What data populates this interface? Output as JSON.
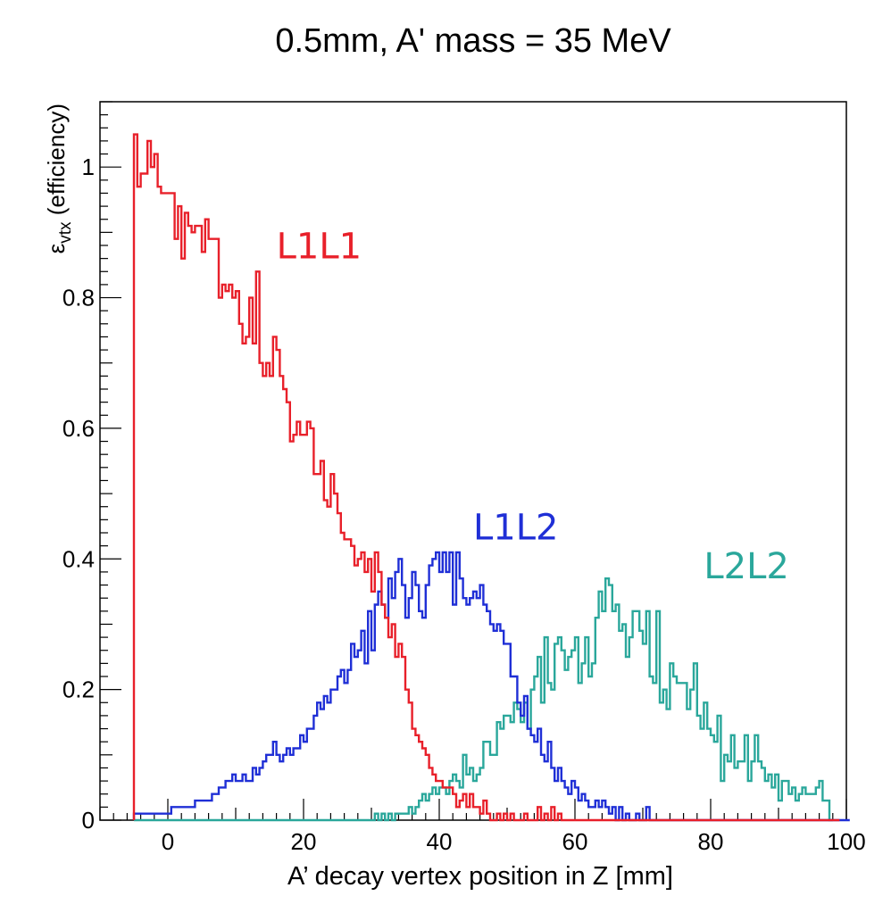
{
  "chart_data": {
    "type": "line",
    "title": "0.5mm, A' mass = 35 MeV",
    "xlabel": "A’ decay vertex position in Z [mm]",
    "ylabel": {
      "main": "ε",
      "sub": "vtx",
      "rest": " (efficiency)"
    },
    "xlim": [
      -10,
      100
    ],
    "ylim": [
      0,
      1.1
    ],
    "x_ticks": [
      0,
      20,
      40,
      60,
      80,
      100
    ],
    "x_tick_labels": [
      "0",
      "20",
      "40",
      "60",
      "80",
      "100"
    ],
    "y_ticks": [
      0,
      0.2,
      0.4,
      0.6,
      0.8,
      1
    ],
    "y_tick_labels": [
      "0",
      "0.2",
      "0.4",
      "0.6",
      "0.8",
      "1"
    ],
    "grid": false,
    "bin_width": 1,
    "bin_start": -5,
    "series": [
      {
        "name": "L1L1",
        "color": "#e8202a",
        "label_position": {
          "x": 16,
          "y": 0.86
        },
        "y_bins": [
          1.05,
          0.97,
          0.99,
          0.99,
          1.04,
          1.0,
          1.02,
          0.97,
          0.96,
          0.96,
          0.96,
          0.96,
          0.89,
          0.94,
          0.86,
          0.93,
          0.91,
          0.9,
          0.91,
          0.91,
          0.87,
          0.92,
          0.89,
          0.89,
          0.89,
          0.8,
          0.82,
          0.81,
          0.82,
          0.8,
          0.81,
          0.76,
          0.73,
          0.74,
          0.8,
          0.73,
          0.84,
          0.7,
          0.68,
          0.7,
          0.68,
          0.74,
          0.72,
          0.68,
          0.66,
          0.64,
          0.58,
          0.59,
          0.61,
          0.59,
          0.59,
          0.61,
          0.6,
          0.53,
          0.53,
          0.55,
          0.49,
          0.48,
          0.53,
          0.5,
          0.47,
          0.44,
          0.43,
          0.43,
          0.42,
          0.39,
          0.4,
          0.41,
          0.38,
          0.4,
          0.35,
          0.41,
          0.38,
          0.33,
          0.31,
          0.28,
          0.3,
          0.25,
          0.27,
          0.25,
          0.2,
          0.18,
          0.14,
          0.13,
          0.12,
          0.11,
          0.1,
          0.08,
          0.07,
          0.06,
          0.06,
          0.05,
          0.05,
          0.05,
          0.04,
          0.02,
          0.03,
          0.04,
          0.02,
          0.04,
          0.02,
          0.02,
          0.01,
          0.03,
          0.01,
          0.0,
          0.0,
          0.01,
          0.0,
          0.01,
          0.0,
          0.01,
          0.0,
          0.0,
          0.0,
          0.01,
          0.0,
          0.0,
          0.0,
          0.02,
          0.0,
          0.01,
          0.0,
          0.02,
          0.0,
          0.01,
          0.0,
          0.0,
          0.0,
          0.0,
          0.0,
          0.0,
          0.0,
          0.0,
          0.0,
          0.0,
          0.0,
          0.0,
          0.0,
          0.0,
          0.0,
          0.0,
          0.0,
          0.0,
          0.0,
          0.0,
          0.0,
          0.0,
          0.0,
          0.0,
          0.0,
          0.0,
          0.0,
          0.0,
          0.0,
          0.0,
          0.0,
          0.0,
          0.0,
          0.0,
          0.0,
          0.0,
          0.0,
          0.0,
          0.0,
          0.0,
          0.0,
          0.0,
          0.0,
          0.0,
          0.0,
          0.0,
          0.0,
          0.0,
          0.0,
          0.0,
          0.0,
          0.0,
          0.0,
          0.0,
          0.0,
          0.0,
          0.0,
          0.0,
          0.0,
          0.0,
          0.0,
          0.0,
          0.0,
          0.0,
          0.0,
          0.0,
          0.0,
          0.0,
          0.0,
          0.0,
          0.0,
          0.0,
          0.0,
          0.0,
          0.0,
          0.0,
          0.0,
          0.0,
          0.0,
          0.0,
          0.0,
          0.0
        ]
      },
      {
        "name": "L1L2",
        "color": "#1f2fd6",
        "label_position": {
          "x": 45,
          "y": 0.43
        },
        "y_bins": [
          0.01,
          0.01,
          0.01,
          0.01,
          0.01,
          0.01,
          0.01,
          0.01,
          0.01,
          0.01,
          0.01,
          0.02,
          0.02,
          0.02,
          0.02,
          0.02,
          0.02,
          0.02,
          0.03,
          0.03,
          0.03,
          0.03,
          0.03,
          0.04,
          0.04,
          0.05,
          0.05,
          0.06,
          0.06,
          0.07,
          0.06,
          0.06,
          0.07,
          0.06,
          0.06,
          0.08,
          0.07,
          0.08,
          0.09,
          0.1,
          0.1,
          0.12,
          0.1,
          0.09,
          0.1,
          0.11,
          0.1,
          0.11,
          0.11,
          0.13,
          0.12,
          0.14,
          0.14,
          0.16,
          0.18,
          0.17,
          0.19,
          0.18,
          0.2,
          0.2,
          0.22,
          0.23,
          0.21,
          0.23,
          0.27,
          0.25,
          0.26,
          0.29,
          0.24,
          0.32,
          0.26,
          0.33,
          0.35,
          0.33,
          0.31,
          0.37,
          0.34,
          0.38,
          0.4,
          0.36,
          0.31,
          0.34,
          0.38,
          0.36,
          0.32,
          0.31,
          0.36,
          0.39,
          0.4,
          0.41,
          0.38,
          0.41,
          0.38,
          0.41,
          0.33,
          0.41,
          0.37,
          0.34,
          0.33,
          0.34,
          0.35,
          0.34,
          0.36,
          0.33,
          0.32,
          0.3,
          0.29,
          0.3,
          0.29,
          0.27,
          0.27,
          0.22,
          0.22,
          0.18,
          0.16,
          0.19,
          0.14,
          0.13,
          0.12,
          0.14,
          0.1,
          0.09,
          0.12,
          0.08,
          0.06,
          0.08,
          0.06,
          0.05,
          0.04,
          0.06,
          0.05,
          0.03,
          0.04,
          0.03,
          0.02,
          0.02,
          0.03,
          0.02,
          0.03,
          0.02,
          0.01,
          0.02,
          0.0,
          0.02,
          0.0,
          0.01,
          0.0,
          0.0,
          0.01,
          0.0,
          0.0,
          0.02,
          0.0,
          0.0,
          0.0,
          0.0,
          0.0,
          0.0,
          0.0,
          0.0,
          0.0,
          0.0,
          0.0,
          0.0,
          0.0,
          0.0,
          0.0,
          0.0,
          0.0,
          0.0,
          0.0,
          0.0,
          0.0,
          0.0,
          0.0,
          0.0,
          0.0,
          0.0,
          0.0,
          0.0,
          0.0,
          0.0,
          0.0,
          0.0,
          0.0,
          0.0,
          0.0,
          0.0,
          0.0,
          0.0,
          0.0,
          0.0,
          0.0,
          0.0,
          0.0,
          0.0,
          0.0,
          0.0,
          0.0,
          0.0,
          0.0,
          0.0,
          0.0,
          0.0,
          0.0,
          0.0,
          0.0,
          0.0,
          0.0,
          0.0,
          0.0
        ]
      },
      {
        "name": "L2L2",
        "color": "#2aa79b",
        "label_position": {
          "x": 79,
          "y": 0.37
        },
        "y_bins": [
          0.0,
          0.0,
          0.0,
          0.0,
          0.0,
          0.0,
          0.0,
          0.0,
          0.0,
          0.0,
          0.0,
          0.0,
          0.0,
          0.0,
          0.0,
          0.0,
          0.0,
          0.0,
          0.0,
          0.0,
          0.0,
          0.0,
          0.0,
          0.0,
          0.0,
          0.0,
          0.0,
          0.0,
          0.0,
          0.0,
          0.0,
          0.0,
          0.0,
          0.0,
          0.0,
          0.0,
          0.0,
          0.0,
          0.0,
          0.0,
          0.0,
          0.0,
          0.0,
          0.0,
          0.0,
          0.0,
          0.0,
          0.0,
          0.0,
          0.0,
          0.0,
          0.0,
          0.0,
          0.0,
          0.0,
          0.0,
          0.0,
          0.0,
          0.0,
          0.0,
          0.0,
          0.0,
          0.0,
          0.0,
          0.0,
          0.0,
          0.0,
          0.0,
          0.0,
          0.0,
          0.0,
          0.01,
          0.0,
          0.01,
          0.0,
          0.01,
          0.0,
          0.01,
          0.01,
          0.01,
          0.01,
          0.02,
          0.01,
          0.02,
          0.03,
          0.04,
          0.03,
          0.04,
          0.05,
          0.04,
          0.05,
          0.05,
          0.04,
          0.06,
          0.07,
          0.06,
          0.05,
          0.1,
          0.07,
          0.08,
          0.06,
          0.07,
          0.08,
          0.12,
          0.12,
          0.1,
          0.1,
          0.15,
          0.14,
          0.16,
          0.16,
          0.15,
          0.18,
          0.17,
          0.15,
          0.18,
          0.14,
          0.2,
          0.22,
          0.25,
          0.18,
          0.28,
          0.21,
          0.2,
          0.27,
          0.28,
          0.26,
          0.23,
          0.25,
          0.26,
          0.28,
          0.21,
          0.24,
          0.28,
          0.22,
          0.24,
          0.31,
          0.35,
          0.32,
          0.37,
          0.36,
          0.32,
          0.33,
          0.29,
          0.3,
          0.25,
          0.28,
          0.32,
          0.32,
          0.29,
          0.27,
          0.32,
          0.22,
          0.21,
          0.32,
          0.18,
          0.2,
          0.17,
          0.24,
          0.22,
          0.21,
          0.21,
          0.21,
          0.17,
          0.2,
          0.24,
          0.16,
          0.14,
          0.18,
          0.14,
          0.13,
          0.12,
          0.16,
          0.06,
          0.1,
          0.09,
          0.13,
          0.08,
          0.09,
          0.09,
          0.13,
          0.06,
          0.09,
          0.13,
          0.09,
          0.08,
          0.06,
          0.07,
          0.05,
          0.07,
          0.03,
          0.06,
          0.06,
          0.04,
          0.05,
          0.03,
          0.04,
          0.05,
          0.04,
          0.04,
          0.04,
          0.05,
          0.06,
          0.03,
          0.03,
          0.0
        ]
      }
    ]
  }
}
